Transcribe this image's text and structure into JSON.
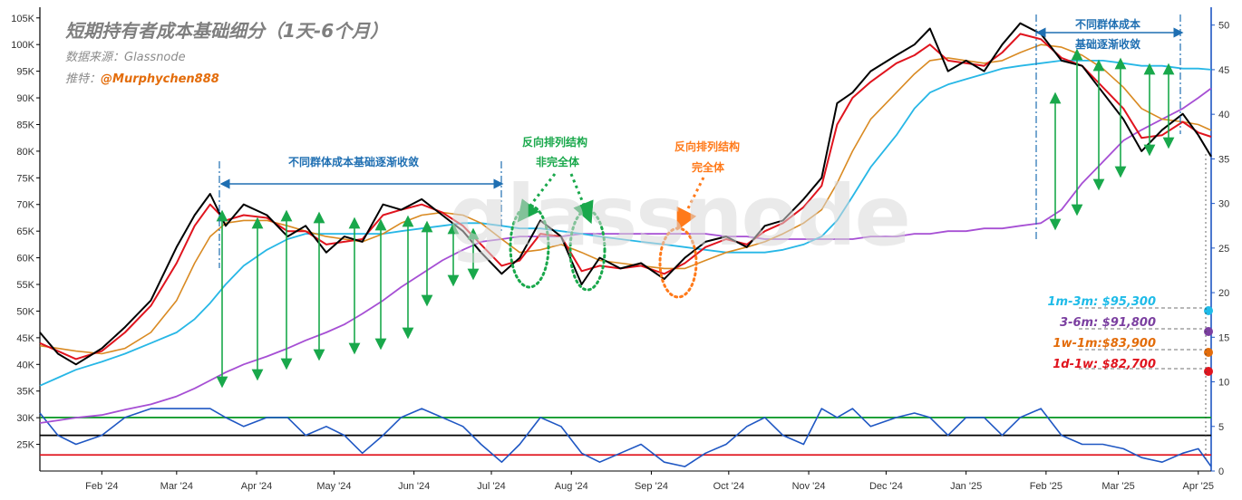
{
  "title": "短期持有者成本基础细分（1天-6个月）",
  "source": "数据来源：Glassnode",
  "twitter_prefix": "推特：",
  "twitter_handle": "@Murphychen888",
  "watermark": "glassnode",
  "annotations": {
    "converge_1": "不同群体成本基础逐渐收敛",
    "converge_2a": "不同群体成本",
    "converge_2b": "基础逐渐收敛",
    "reverse_partial_1": "反向排列结构",
    "reverse_partial_2": "非完全体",
    "reverse_full_1": "反向排列结构",
    "reverse_full_2": "完全体"
  },
  "legend": [
    {
      "label": "1m-3m: $95,300",
      "color": "#1ebbe8"
    },
    {
      "label": "3-6m:  $91,800",
      "color": "#7b3fa0"
    },
    {
      "label": "1w-1m:$83,900",
      "color": "#e36c0a"
    },
    {
      "label": "1d-1w:  $82,700",
      "color": "#e0141e"
    }
  ],
  "colors": {
    "price": "#000000",
    "d1_w1": "#e0141e",
    "w1_m1": "#d98a22",
    "m1_m3": "#27b7e6",
    "m3_m6": "#a64fd4",
    "oscillator": "#1f57c3",
    "osc_upper": "#139b2e",
    "osc_mid": "#000000",
    "osc_lower": "#e0141e",
    "arrows_green": "#19a84b",
    "arrows_blue": "#1f6fb2",
    "dotted_green": "#19a84b",
    "dotted_orange": "#ff7a1a",
    "right_axis": "#1f57c3"
  },
  "chart_data": {
    "type": "line",
    "title": "短期持有者成本基础细分（1天-6个月）",
    "xlabel": "",
    "ylabel": "",
    "x_range": [
      "2024-01-08",
      "2025-04-06"
    ],
    "ylim": [
      20000,
      107000
    ],
    "y2lim": [
      0,
      52
    ],
    "grid": false,
    "x_ticks": [
      "Feb '24",
      "Mar '24",
      "Apr '24",
      "May '24",
      "Jun '24",
      "Jul '24",
      "Aug '24",
      "Sep '24",
      "Oct '24",
      "Nov '24",
      "Dec '24",
      "Jan '25",
      "Feb '25",
      "Mar '25",
      "Apr '25"
    ],
    "x_tick_dates": [
      "2024-02-01",
      "2024-03-01",
      "2024-04-01",
      "2024-05-01",
      "2024-06-01",
      "2024-07-01",
      "2024-08-01",
      "2024-09-01",
      "2024-10-01",
      "2024-11-01",
      "2024-12-01",
      "2025-01-01",
      "2025-02-01",
      "2025-03-01",
      "2025-04-01"
    ],
    "y_ticks": [
      "25K",
      "30K",
      "35K",
      "40K",
      "45K",
      "50K",
      "55K",
      "60K",
      "65K",
      "70K",
      "75K",
      "80K",
      "85K",
      "90K",
      "95K",
      "100K",
      "105K"
    ],
    "y_tick_values": [
      25000,
      30000,
      35000,
      40000,
      45000,
      50000,
      55000,
      60000,
      65000,
      70000,
      75000,
      80000,
      85000,
      90000,
      95000,
      100000,
      105000
    ],
    "y2_ticks": [
      "0",
      "5",
      "10",
      "15",
      "20",
      "25",
      "30",
      "35",
      "40",
      "45",
      "50"
    ],
    "y2_tick_values": [
      0,
      5,
      10,
      15,
      20,
      25,
      30,
      35,
      40,
      45,
      50
    ],
    "x": [
      "2024-01-08",
      "2024-01-15",
      "2024-01-22",
      "2024-02-01",
      "2024-02-10",
      "2024-02-20",
      "2024-03-01",
      "2024-03-08",
      "2024-03-14",
      "2024-03-20",
      "2024-03-27",
      "2024-04-05",
      "2024-04-13",
      "2024-04-20",
      "2024-04-28",
      "2024-05-05",
      "2024-05-12",
      "2024-05-20",
      "2024-05-27",
      "2024-06-04",
      "2024-06-12",
      "2024-06-20",
      "2024-06-27",
      "2024-07-05",
      "2024-07-12",
      "2024-07-20",
      "2024-07-28",
      "2024-08-05",
      "2024-08-12",
      "2024-08-20",
      "2024-08-28",
      "2024-09-06",
      "2024-09-14",
      "2024-09-22",
      "2024-09-30",
      "2024-10-08",
      "2024-10-15",
      "2024-10-22",
      "2024-10-30",
      "2024-11-06",
      "2024-11-12",
      "2024-11-18",
      "2024-11-25",
      "2024-12-05",
      "2024-12-12",
      "2024-12-18",
      "2024-12-25",
      "2025-01-01",
      "2025-01-08",
      "2025-01-15",
      "2025-01-22",
      "2025-01-30",
      "2025-02-07",
      "2025-02-15",
      "2025-02-23",
      "2025-03-03",
      "2025-03-10",
      "2025-03-18",
      "2025-03-26",
      "2025-04-01",
      "2025-04-06"
    ],
    "series": [
      {
        "name": "",
        "values": [
          46000,
          42000,
          40000,
          43000,
          47000,
          52000,
          62000,
          68000,
          72000,
          66000,
          70000,
          68000,
          64000,
          66000,
          61000,
          64000,
          63000,
          70000,
          69000,
          71000,
          68000,
          65000,
          61000,
          57000,
          60000,
          67000,
          64000,
          55000,
          60000,
          58000,
          59000,
          56000,
          60000,
          63000,
          64000,
          62000,
          66000,
          67000,
          71000,
          75000,
          89000,
          91000,
          95000,
          98000,
          100000,
          103000,
          95000,
          97000,
          95000,
          100000,
          104000,
          102000,
          97000,
          96000,
          91000,
          86000,
          80000,
          84000,
          87000,
          83000,
          79000
        ]
      },
      {
        "name": "1d-1w",
        "values": [
          44000,
          42500,
          41000,
          42500,
          46000,
          51000,
          59000,
          66000,
          70000,
          67000,
          68000,
          67500,
          65000,
          65000,
          62500,
          63000,
          63500,
          68000,
          69000,
          70000,
          68500,
          66000,
          62500,
          58500,
          59500,
          64500,
          64000,
          57500,
          58500,
          58000,
          58500,
          57000,
          59000,
          62000,
          63500,
          62500,
          65000,
          66500,
          69500,
          73500,
          85000,
          90000,
          93000,
          96500,
          98000,
          100000,
          97000,
          96500,
          96000,
          98500,
          102000,
          101000,
          97500,
          96000,
          92000,
          88000,
          82500,
          83000,
          85500,
          83500,
          82700
        ]
      },
      {
        "name": "1w-1m",
        "values": [
          43500,
          43000,
          42500,
          42000,
          43000,
          46000,
          52000,
          59000,
          64000,
          66500,
          67000,
          67000,
          66000,
          65000,
          64000,
          63500,
          63000,
          64500,
          66500,
          68000,
          68500,
          68000,
          66500,
          63500,
          61000,
          61500,
          62500,
          61000,
          59500,
          59000,
          58500,
          58000,
          58000,
          59500,
          61000,
          62000,
          63000,
          64500,
          66500,
          69000,
          74000,
          80000,
          86000,
          91000,
          94500,
          97000,
          97500,
          97000,
          96500,
          97000,
          98500,
          100000,
          99500,
          98000,
          95500,
          92000,
          88000,
          86000,
          85500,
          85000,
          83900
        ]
      },
      {
        "name": "1m-3m",
        "values": [
          36000,
          37500,
          39000,
          40500,
          42000,
          44000,
          46000,
          48500,
          51500,
          55000,
          58500,
          61500,
          63500,
          64500,
          64500,
          64500,
          64500,
          64500,
          65000,
          65500,
          66000,
          66500,
          66500,
          66000,
          65500,
          65500,
          65000,
          64500,
          64000,
          63500,
          63000,
          62500,
          62000,
          61500,
          61000,
          61000,
          61000,
          61500,
          62500,
          64000,
          67000,
          71500,
          77000,
          83000,
          88000,
          91000,
          92500,
          93500,
          94500,
          95500,
          96000,
          96500,
          97000,
          97000,
          97000,
          96500,
          96000,
          96000,
          95500,
          95500,
          95300
        ]
      },
      {
        "name": "3-6m",
        "values": [
          29000,
          29500,
          30000,
          30500,
          31500,
          32500,
          34000,
          35500,
          37000,
          38500,
          40000,
          41500,
          43000,
          44500,
          46000,
          47500,
          49500,
          52000,
          54500,
          57000,
          59500,
          61500,
          63000,
          63500,
          64000,
          64000,
          64000,
          64500,
          64500,
          64500,
          64500,
          64500,
          64500,
          64500,
          64000,
          64000,
          63500,
          63500,
          63500,
          63500,
          63500,
          63500,
          64000,
          64000,
          64500,
          64500,
          65000,
          65000,
          65500,
          65500,
          66000,
          66500,
          69000,
          74000,
          78000,
          82000,
          84000,
          86000,
          88000,
          90000,
          91800
        ]
      },
      {
        "name": "",
        "values": [
          6.5,
          4,
          3,
          4,
          6,
          7,
          7,
          7,
          7,
          6,
          5,
          6,
          6,
          4,
          5,
          4,
          2,
          4,
          6,
          7,
          6,
          5,
          3,
          1,
          3,
          6,
          5,
          2,
          1,
          2,
          3,
          1,
          0.5,
          2,
          3,
          5,
          6,
          4,
          3,
          7,
          6,
          7,
          5,
          6,
          6.5,
          6,
          4,
          6,
          6,
          4,
          6,
          7,
          4,
          3,
          3,
          2.5,
          1.5,
          1,
          2,
          2.5,
          0.5
        ]
      }
    ],
    "reference_lines_y2": [
      {
        "value": 6,
        "color": "#139b2e"
      },
      {
        "value": 4,
        "color": "#000000"
      },
      {
        "value": 1.8,
        "color": "#e0141e"
      }
    ]
  }
}
